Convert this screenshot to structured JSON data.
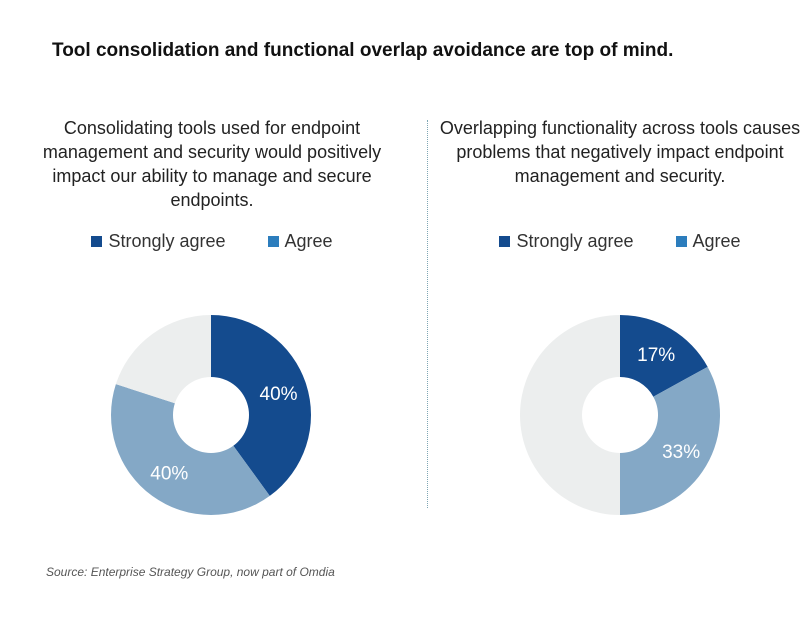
{
  "headline": "Tool consolidation and functional overlap avoidance are top of mind.",
  "colors": {
    "strongly_agree": "#144b8e",
    "agree": "#84a8c6",
    "other": "#eceeee",
    "legend_agree": "#2c7dbd",
    "label_text": "#ffffff"
  },
  "legend": {
    "strongly_agree": "Strongly agree",
    "agree": "Agree"
  },
  "chart_data": [
    {
      "type": "pie",
      "title": "Consolidating tools used for endpoint management and security would positively impact our ability to manage and secure endpoints.",
      "categories": [
        "Strongly agree",
        "Agree",
        ""
      ],
      "values": [
        40,
        40,
        20
      ],
      "labels": [
        "40%",
        "40%",
        ""
      ]
    },
    {
      "type": "pie",
      "title": "Overlapping functionality across tools causes problems that negatively impact endpoint management and security.",
      "categories": [
        "Strongly agree",
        "Agree",
        ""
      ],
      "values": [
        17,
        33,
        50
      ],
      "labels": [
        "17%",
        "33%",
        ""
      ]
    }
  ],
  "source": "Source: Enterprise Strategy Group, now part of Omdia"
}
